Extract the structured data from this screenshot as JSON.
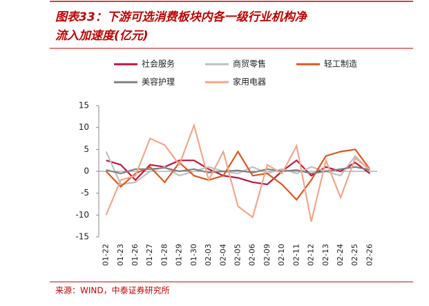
{
  "chart_data": {
    "type": "line",
    "title_line1": "图表33：下游可选消费板块内各一级行业机构净",
    "title_line2": "流入加速度(亿元)",
    "source": "来源：WIND，中泰证券研究所",
    "categories": [
      "01-22",
      "01-23",
      "01-26",
      "01-27",
      "01-28",
      "01-29",
      "01-30",
      "02-03",
      "02-04",
      "02-05",
      "02-06",
      "02-09",
      "02-10",
      "02-11",
      "02-12",
      "02-13",
      "02-24",
      "02-25",
      "02-26"
    ],
    "series": [
      {
        "name": "社会服务",
        "color": "#c0143c",
        "values": [
          2.5,
          1.5,
          -2,
          1.5,
          1,
          2.5,
          2.5,
          0.5,
          -1,
          -1.5,
          -2.5,
          -3,
          0,
          2.5,
          -1,
          1,
          0,
          2,
          -0.5
        ]
      },
      {
        "name": "商贸零售",
        "color": "#bfbfbf",
        "values": [
          4.5,
          -3,
          -2.5,
          0,
          1,
          -1,
          0,
          1,
          0,
          -0.5,
          1,
          -0.5,
          0.5,
          -0.5,
          1,
          0,
          -1,
          3.5,
          0
        ]
      },
      {
        "name": "轻工制造",
        "color": "#e0561e",
        "values": [
          0,
          -3.5,
          -0.5,
          1,
          -2.5,
          2,
          -1,
          -2,
          -1,
          4.5,
          -1,
          -0.5,
          -3,
          -6.5,
          -2,
          3.5,
          4.5,
          5,
          0.5
        ]
      },
      {
        "name": "美容护理",
        "color": "#7f7f7f",
        "values": [
          0.3,
          -0.5,
          0.5,
          0.5,
          0.8,
          0,
          0.5,
          -0.3,
          0,
          0.2,
          -0.3,
          0.5,
          0,
          0.3,
          -0.5,
          0,
          0.5,
          1,
          0.3
        ]
      },
      {
        "name": "家用电器",
        "color": "#f4a58a",
        "values": [
          -10,
          -2,
          -1,
          7.5,
          6,
          1.5,
          10.5,
          -2,
          4.5,
          -8,
          -10.5,
          1.5,
          -0.5,
          5.8,
          -11.5,
          2.5,
          -6,
          3,
          0.5
        ]
      }
    ],
    "ylim": [
      -15,
      15
    ],
    "yticks": [
      15,
      10,
      5,
      0,
      -5,
      -10,
      -15
    ],
    "grid": false
  }
}
